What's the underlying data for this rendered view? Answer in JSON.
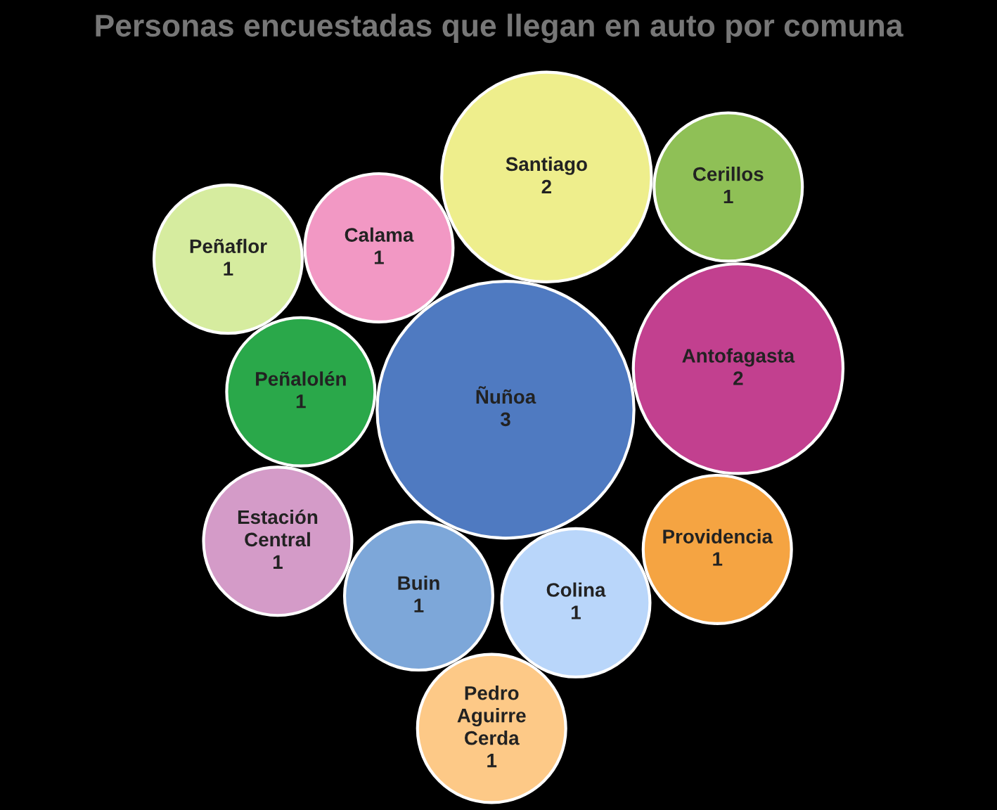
{
  "chart_data": {
    "type": "other",
    "title": "Personas encuestadas que llegan en auto por comuna",
    "categories": [
      "Ñuñoa",
      "Antofagasta",
      "Santiago",
      "Buin",
      "Calama",
      "Peñalolén",
      "Colina",
      "Providencia",
      "Estación Central",
      "Cerillos",
      "Peñaflor",
      "Pedro Aguirre Cerda"
    ],
    "values": [
      3,
      2,
      2,
      1,
      1,
      1,
      1,
      1,
      1,
      1,
      1,
      1
    ],
    "colors": [
      "#4f7ac1",
      "#c2408f",
      "#eeee8c",
      "#7da7d9",
      "#f298c4",
      "#2aa84a",
      "#b9d6fa",
      "#f5a442",
      "#d49bc8",
      "#8fc056",
      "#d6ec9f",
      "#fdc987"
    ],
    "data_labels": true
  }
}
